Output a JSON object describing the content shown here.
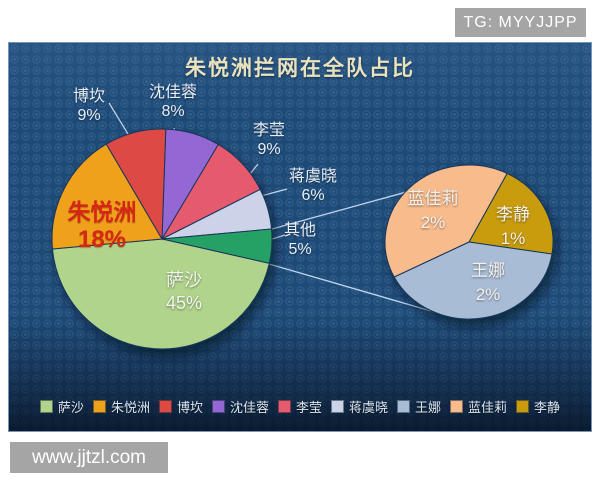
{
  "watermarks": {
    "top_right": "TG: MYYJJPP",
    "bottom_left": "www.jjtzl.com"
  },
  "chart_data": {
    "type": "pie",
    "variant": "pie-of-pie",
    "title": "朱悦洲拦网在全队占比",
    "unit": "%",
    "background_color": "#1d4a77",
    "main_pie": {
      "start_angle_deg": 2,
      "slices": [
        {
          "name": "沈佳蓉",
          "value": 8,
          "pct": "8%",
          "color": "#9468d4"
        },
        {
          "name": "李莹",
          "value": 9,
          "pct": "9%",
          "color": "#e65a6e"
        },
        {
          "name": "蒋虞晓",
          "value": 6,
          "pct": "6%",
          "color": "#ccd3e8"
        },
        {
          "name": "其他",
          "value": 5,
          "pct": "5%",
          "color": "#28a165"
        },
        {
          "name": "萨沙",
          "value": 45,
          "pct": "45%",
          "color": "#b1d48c"
        },
        {
          "name": "朱悦洲",
          "value": 18,
          "pct": "18%",
          "color": "#f0a11c"
        },
        {
          "name": "博坎",
          "value": 9,
          "pct": "9%",
          "color": "#dd4a44"
        }
      ]
    },
    "secondary_pie": {
      "start_angle_deg": 27,
      "slices": [
        {
          "name": "李静",
          "value": 1,
          "pct": "1%",
          "color": "#c99c10"
        },
        {
          "name": "王娜",
          "value": 2,
          "pct": "2%",
          "color": "#a9bcd6"
        },
        {
          "name": "蓝佳莉",
          "value": 2,
          "pct": "2%",
          "color": "#f7bb8c"
        }
      ]
    },
    "legend_position": "bottom",
    "legend": [
      {
        "label": "萨沙",
        "color": "#b1d48c"
      },
      {
        "label": "朱悦洲",
        "color": "#f0a11c"
      },
      {
        "label": "博坎",
        "color": "#dd4a44"
      },
      {
        "label": "沈佳蓉",
        "color": "#9468d4"
      },
      {
        "label": "李莹",
        "color": "#e65a6e"
      },
      {
        "label": "蒋虞晓",
        "color": "#ccd3e8"
      },
      {
        "label": "王娜",
        "color": "#a9bcd6"
      },
      {
        "label": "蓝佳莉",
        "color": "#f7bb8c"
      },
      {
        "label": "李静",
        "color": "#c99c10"
      }
    ]
  }
}
